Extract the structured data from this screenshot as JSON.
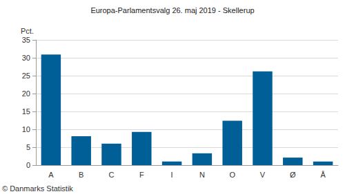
{
  "chart_data": {
    "type": "bar",
    "title": "Europa-Parlamentsvalg 26. maj 2019 - Skellerup",
    "y_label": "Pct.",
    "annotations": [
      "© Danmarks Statistik"
    ],
    "categories": [
      "A",
      "B",
      "C",
      "F",
      "I",
      "N",
      "O",
      "V",
      "Ø",
      "Å"
    ],
    "values": [
      30.9,
      8.1,
      6.0,
      9.3,
      1.0,
      3.3,
      12.4,
      26.2,
      2.1,
      1.0
    ],
    "color": "#005f96",
    "ylim": [
      0,
      35
    ],
    "yticks": [
      0,
      5,
      10,
      15,
      20,
      25,
      30,
      35
    ],
    "grid": true
  }
}
